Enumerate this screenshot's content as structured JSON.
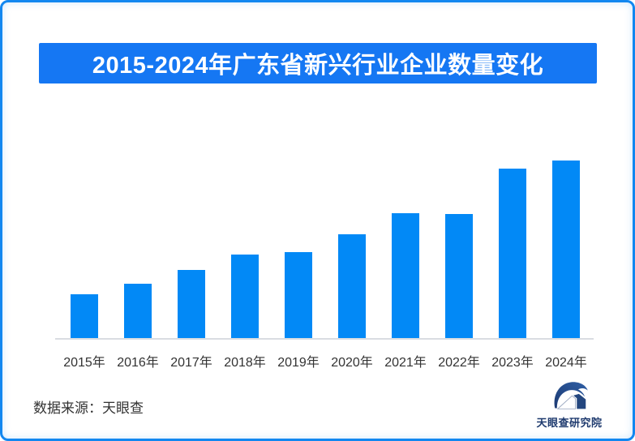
{
  "page": {
    "background_color": "#FFFFFF",
    "frame_border_color": "#1287F0"
  },
  "header": {
    "title": "2015-2024年广东省新兴行业企业数量变化",
    "banner_color": "#1577F3",
    "title_color": "#FFFFFF"
  },
  "chart_data": {
    "type": "bar",
    "title": "2015-2024年广东省新兴行业企业数量变化",
    "categories": [
      "2015年",
      "2016年",
      "2017年",
      "2018年",
      "2019年",
      "2020年",
      "2021年",
      "2022年",
      "2023年",
      "2024年"
    ],
    "values_relative": [
      24.7,
      30.6,
      38.4,
      47.0,
      48.4,
      58.4,
      70.3,
      69.9,
      95.4,
      100.0
    ],
    "value_scale_note": "no y-axis, gridlines or data labels are shown in the image; values are relative bar heights with 2024 = 100",
    "xlabel": "",
    "ylabel": "",
    "ylim": [
      0,
      100
    ],
    "grid": false,
    "legend": false,
    "bar_color": "#0289F6",
    "axis_line_color": "#D9DDE2",
    "tick_label_color": "#333333"
  },
  "footer": {
    "source_label": "数据来源：天眼查",
    "logo_text": "天眼查研究院",
    "logo_dark_blue": "#1C3D7C",
    "logo_light_blue": "#2F5FA6"
  }
}
